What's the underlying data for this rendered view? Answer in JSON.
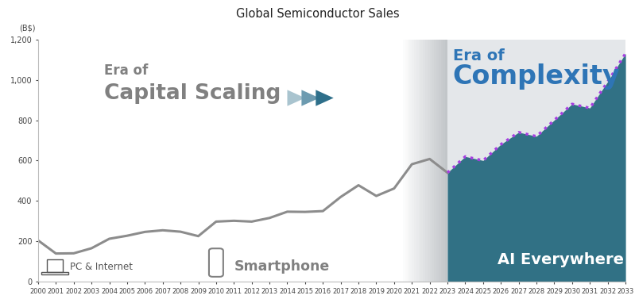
{
  "chart_data": {
    "type": "line",
    "title": "Global Semiconductor Sales",
    "y_label": "(B$)",
    "x": [
      2000,
      2001,
      2002,
      2003,
      2004,
      2005,
      2006,
      2007,
      2008,
      2009,
      2010,
      2011,
      2012,
      2013,
      2014,
      2015,
      2016,
      2017,
      2018,
      2019,
      2020,
      2021,
      2022,
      2023,
      2024,
      2025,
      2026,
      2027,
      2028,
      2029,
      2030,
      2031,
      2032,
      2033
    ],
    "xlim": [
      2000,
      2033
    ],
    "xticks": [
      2000,
      2001,
      2002,
      2003,
      2004,
      2005,
      2006,
      2007,
      2008,
      2009,
      2010,
      2011,
      2012,
      2013,
      2014,
      2015,
      2016,
      2017,
      2018,
      2019,
      2020,
      2021,
      2022,
      2023,
      2024,
      2025,
      2026,
      2027,
      2028,
      2029,
      2030,
      2031,
      2032,
      2033
    ],
    "ylim": [
      0,
      1200
    ],
    "yticks": [
      0,
      200,
      400,
      600,
      800,
      {
        "value": 1000,
        "label": "1,000"
      },
      {
        "value": 1200,
        "label": "1,200"
      }
    ],
    "grid": false,
    "series": [
      {
        "type": "line",
        "color": "#8c8c8c",
        "line_style": "solid",
        "values": [
          205,
          140,
          141,
          166,
          213,
          228,
          247,
          255,
          248,
          226,
          298,
          302,
          298,
          316,
          347,
          346,
          350,
          420,
          478,
          425,
          462,
          582,
          608,
          540,
          null,
          null,
          null,
          null,
          null,
          null,
          null,
          null,
          null,
          null
        ]
      },
      {
        "type": "area",
        "color": "#a63fe0",
        "line_style": "dotted",
        "values": [
          null,
          null,
          null,
          null,
          null,
          null,
          null,
          null,
          null,
          null,
          null,
          null,
          null,
          null,
          null,
          null,
          null,
          null,
          null,
          null,
          null,
          null,
          null,
          540,
          620,
          600,
          680,
          740,
          720,
          800,
          880,
          860,
          990,
          1130
        ]
      }
    ],
    "annotations": [
      "Era of",
      "Capital Scaling",
      "Era of",
      "Complexity",
      "AI Everywhere",
      "PC & Internet",
      "Smartphone"
    ]
  }
}
